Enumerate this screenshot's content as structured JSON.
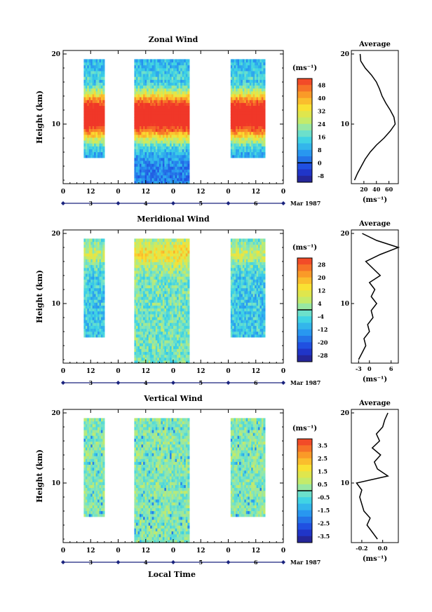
{
  "x_label": "Local Time",
  "panels": [
    {
      "title": "Zonal Wind",
      "avg_title": "Average",
      "ylabel": "Height (km)",
      "unit_label": "(ms⁻¹)",
      "avg_xlabel": "(ms⁻¹)",
      "colorbar_ticks": [
        "48",
        "40",
        "32",
        "24",
        "16",
        "8",
        "0",
        "-8"
      ],
      "avg_xticks": [
        "20",
        "40",
        "60"
      ]
    },
    {
      "title": "Meridional Wind",
      "avg_title": "Average",
      "ylabel": "Height (km)",
      "unit_label": "(ms⁻¹)",
      "avg_xlabel": "(ms⁻¹)",
      "colorbar_ticks": [
        "28",
        "20",
        "12",
        "4",
        "-4",
        "-12",
        "-20",
        "-28"
      ],
      "avg_xticks": [
        "-3",
        "0",
        "6"
      ]
    },
    {
      "title": "Vertical Wind",
      "avg_title": "Average",
      "ylabel": "Height (km)",
      "unit_label": "(ms⁻¹)",
      "avg_xlabel": "(ms⁻¹)",
      "colorbar_ticks": [
        "3.5",
        "2.5",
        "1.5",
        "0.5",
        "-0.5",
        "-1.5",
        "-2.5",
        "-3.5"
      ],
      "avg_xticks": [
        "-0.2",
        "0.0"
      ]
    }
  ],
  "chart_data": [
    {
      "type": "heatmap",
      "title": "Zonal Wind",
      "xlabel": "Local Time",
      "ylabel": "Height (km)",
      "x_ticks": [
        "0",
        "12",
        "0",
        "12",
        "0",
        "12",
        "0",
        "12",
        "0"
      ],
      "date_ticks": [
        "3",
        "4",
        "5",
        "6"
      ],
      "date_suffix": "Mar 1987",
      "y_ticks": [
        "10",
        "20"
      ],
      "xlim_hours": [
        0,
        96
      ],
      "ylim_km": [
        1.5,
        20.5
      ],
      "colorbar": {
        "unit": "(ms⁻¹)",
        "min": -12,
        "max": 52,
        "ticks": [
          48,
          40,
          32,
          24,
          16,
          8,
          0,
          -8
        ],
        "black_line_at": 0
      },
      "data_segments_hours": [
        [
          9,
          18
        ],
        [
          31,
          55
        ],
        [
          73,
          88
        ]
      ],
      "average_profile": {
        "title": "Average",
        "xlabel": "(ms⁻¹)",
        "xlim": [
          0,
          75
        ],
        "xticks": [
          20,
          40,
          60
        ],
        "height_km": [
          2,
          3,
          4,
          5,
          6,
          7,
          8,
          9,
          10,
          11,
          12,
          13,
          14,
          15,
          16,
          17,
          18,
          19,
          20
        ],
        "values": [
          5,
          10,
          16,
          22,
          30,
          40,
          52,
          62,
          70,
          68,
          62,
          55,
          49,
          45,
          40,
          32,
          22,
          15,
          14
        ]
      }
    },
    {
      "type": "heatmap",
      "title": "Meridional Wind",
      "xlabel": "Local Time",
      "ylabel": "Height (km)",
      "x_ticks": [
        "0",
        "12",
        "0",
        "12",
        "0",
        "12",
        "0",
        "12",
        "0"
      ],
      "date_ticks": [
        "3",
        "4",
        "5",
        "6"
      ],
      "date_suffix": "Mar 1987",
      "y_ticks": [
        "10",
        "20"
      ],
      "xlim_hours": [
        0,
        96
      ],
      "ylim_km": [
        1.5,
        20.5
      ],
      "colorbar": {
        "unit": "(ms⁻¹)",
        "min": -32,
        "max": 32,
        "ticks": [
          28,
          20,
          12,
          4,
          -4,
          -12,
          -20,
          -28
        ],
        "black_line_at": 0
      },
      "data_segments_hours": [
        [
          9,
          18
        ],
        [
          31,
          55
        ],
        [
          73,
          88
        ]
      ],
      "average_profile": {
        "title": "Average",
        "xlabel": "(ms⁻¹)",
        "xlim": [
          -5,
          8
        ],
        "xticks": [
          -3,
          0,
          6
        ],
        "height_km": [
          2,
          3,
          4,
          5,
          6,
          7,
          8,
          9,
          10,
          11,
          12,
          13,
          14,
          15,
          16,
          17,
          18,
          19,
          20
        ],
        "values": [
          -3,
          -2,
          -1,
          -1.5,
          0,
          -0.5,
          1,
          0.5,
          2,
          0.5,
          1.5,
          0,
          3,
          1,
          -1,
          3,
          8,
          2,
          -2
        ]
      }
    },
    {
      "type": "heatmap",
      "title": "Vertical Wind",
      "xlabel": "Local Time",
      "ylabel": "Height (km)",
      "x_ticks": [
        "0",
        "12",
        "0",
        "12",
        "0",
        "12",
        "0",
        "12",
        "0"
      ],
      "date_ticks": [
        "3",
        "4",
        "5",
        "6"
      ],
      "date_suffix": "Mar 1987",
      "y_ticks": [
        "10",
        "20"
      ],
      "xlim_hours": [
        0,
        96
      ],
      "ylim_km": [
        1.5,
        20.5
      ],
      "colorbar": {
        "unit": "(ms⁻¹)",
        "min": -4,
        "max": 4,
        "ticks": [
          3.5,
          2.5,
          1.5,
          0.5,
          -0.5,
          -1.5,
          -2.5,
          -3.5
        ],
        "black_line_at": 0
      },
      "data_segments_hours": [
        [
          9,
          18
        ],
        [
          31,
          55
        ],
        [
          73,
          88
        ]
      ],
      "average_profile": {
        "title": "Average",
        "xlabel": "(ms⁻¹)",
        "xlim": [
          -0.3,
          0.15
        ],
        "xticks": [
          -0.2,
          0.0
        ],
        "height_km": [
          2,
          3,
          4,
          5,
          6,
          7,
          8,
          9,
          10,
          11,
          12,
          13,
          14,
          15,
          16,
          17,
          18,
          19,
          20
        ],
        "values": [
          -0.05,
          -0.1,
          -0.15,
          -0.12,
          -0.18,
          -0.2,
          -0.22,
          -0.2,
          -0.25,
          0.05,
          -0.05,
          -0.08,
          -0.02,
          -0.1,
          -0.03,
          -0.06,
          0.0,
          0.02,
          0.05
        ]
      }
    }
  ]
}
